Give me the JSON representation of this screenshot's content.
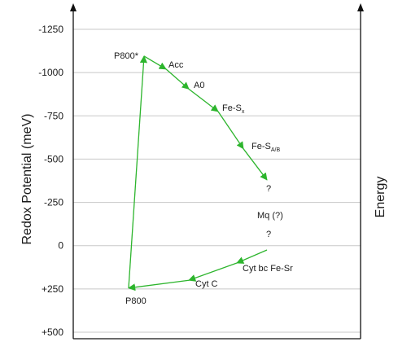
{
  "chart_data": {
    "type": "line",
    "ylabel": "Redox Potential (meV)",
    "right_label": "Energy",
    "y_ticks": [
      "-1250",
      "-1000",
      "-750",
      "-500",
      "-250",
      "0",
      "+250",
      "+500"
    ],
    "y_values": [
      -1250,
      -1000,
      -750,
      -500,
      -250,
      0,
      250,
      500
    ],
    "ylim": [
      -1250,
      500
    ],
    "y_inverted": true,
    "grid": "horizontal",
    "path_color": "#2db52d",
    "pathway": [
      {
        "name": "P800",
        "e": 245
      },
      {
        "name": "P800*",
        "e": -1095
      },
      {
        "name": "Acc",
        "e": -1020
      },
      {
        "name": "A0",
        "e": -905
      },
      {
        "name": "Fe-Sx",
        "e": -775
      },
      {
        "name": "Fe-SA/B",
        "e": -560
      },
      {
        "name": "?",
        "e": -380
      },
      {
        "name": "?",
        "e": 25
      },
      {
        "name": "Cyt bc Fe-Sr",
        "e": 100
      },
      {
        "name": "Cyt C",
        "e": 200
      },
      {
        "name": "P800",
        "e": 245
      }
    ]
  },
  "labels": {
    "p800_top": "P800*",
    "acc": "Acc",
    "a0": "A0",
    "fesx_main": "Fe-S",
    "fesx_sub": "x",
    "fesab_main": "Fe-S",
    "fesab_sub": "A/B",
    "q1": "?",
    "mq": "Mq (?)",
    "q2": "?",
    "cytbc": "Cyt bc Fe-Sr",
    "cytc": "Cyt C",
    "p800_bottom": "P800"
  }
}
